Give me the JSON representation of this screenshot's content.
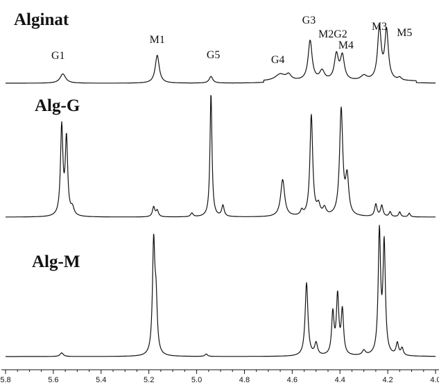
{
  "chart_data": {
    "type": "line",
    "title": "",
    "xlabel": "",
    "ylabel": "",
    "xlim": [
      5.8,
      4.0
    ],
    "x_reversed": true,
    "x_ticks": [
      {
        "value": 5.8,
        "label": "5.8"
      },
      {
        "value": 5.6,
        "label": "5.6"
      },
      {
        "value": 5.4,
        "label": "5.4"
      },
      {
        "value": 5.2,
        "label": "5.2"
      },
      {
        "value": 5.0,
        "label": "5.0"
      },
      {
        "value": 4.8,
        "label": "4.8"
      },
      {
        "value": 4.6,
        "label": "4.6"
      },
      {
        "value": 4.4,
        "label": "4.4"
      },
      {
        "value": 4.2,
        "label": "4.2"
      },
      {
        "value": 4.0,
        "label": "4.0"
      }
    ],
    "grid": false,
    "series": [
      {
        "name": "Alginat",
        "baseline_shift": 0.01,
        "peaks": [
          {
            "x": 5.56,
            "h": 0.14,
            "w": 0.014
          },
          {
            "x": 5.165,
            "h": 0.42,
            "w": 0.01
          },
          {
            "x": 4.94,
            "h": 0.1,
            "w": 0.009
          },
          {
            "x": 4.65,
            "h": 0.1,
            "w": 0.025
          },
          {
            "x": 4.615,
            "h": 0.08,
            "w": 0.012
          },
          {
            "x": 4.525,
            "h": 0.6,
            "w": 0.01
          },
          {
            "x": 4.475,
            "h": 0.14,
            "w": 0.012
          },
          {
            "x": 4.415,
            "h": 0.38,
            "w": 0.01
          },
          {
            "x": 4.39,
            "h": 0.36,
            "w": 0.01
          },
          {
            "x": 4.3,
            "h": 0.07,
            "w": 0.015
          },
          {
            "x": 4.235,
            "h": 0.78,
            "w": 0.009
          },
          {
            "x": 4.205,
            "h": 0.74,
            "w": 0.009
          },
          {
            "x": 4.15,
            "h": 0.04,
            "w": 0.008
          }
        ],
        "labels": [
          {
            "text": "G1",
            "x": 5.58
          },
          {
            "text": "M1",
            "x": 5.165
          },
          {
            "text": "G5",
            "x": 4.93
          },
          {
            "text": "G4",
            "x": 4.66
          },
          {
            "text": "G3",
            "x": 4.53
          },
          {
            "text": "M2G2",
            "x": 4.43
          },
          {
            "text": "M4",
            "x": 4.375
          },
          {
            "text": "M3",
            "x": 4.235
          },
          {
            "text": "M5",
            "x": 4.13
          }
        ]
      },
      {
        "name": "Alg-G",
        "baseline_shift": 0.0,
        "peaks": [
          {
            "x": 5.565,
            "h": 0.72,
            "w": 0.006
          },
          {
            "x": 5.545,
            "h": 0.62,
            "w": 0.006
          },
          {
            "x": 5.52,
            "h": 0.06,
            "w": 0.008
          },
          {
            "x": 5.18,
            "h": 0.08,
            "w": 0.006
          },
          {
            "x": 5.165,
            "h": 0.05,
            "w": 0.006
          },
          {
            "x": 5.02,
            "h": 0.03,
            "w": 0.006
          },
          {
            "x": 4.94,
            "h": 1.0,
            "w": 0.005
          },
          {
            "x": 4.89,
            "h": 0.09,
            "w": 0.006
          },
          {
            "x": 4.64,
            "h": 0.3,
            "w": 0.01
          },
          {
            "x": 4.56,
            "h": 0.04,
            "w": 0.006
          },
          {
            "x": 4.52,
            "h": 0.82,
            "w": 0.007
          },
          {
            "x": 4.49,
            "h": 0.08,
            "w": 0.008
          },
          {
            "x": 4.465,
            "h": 0.06,
            "w": 0.008
          },
          {
            "x": 4.395,
            "h": 0.86,
            "w": 0.008
          },
          {
            "x": 4.37,
            "h": 0.3,
            "w": 0.008
          },
          {
            "x": 4.25,
            "h": 0.1,
            "w": 0.006
          },
          {
            "x": 4.225,
            "h": 0.09,
            "w": 0.006
          },
          {
            "x": 4.19,
            "h": 0.04,
            "w": 0.005
          },
          {
            "x": 4.15,
            "h": 0.04,
            "w": 0.005
          },
          {
            "x": 4.11,
            "h": 0.03,
            "w": 0.005
          }
        ],
        "labels": []
      },
      {
        "name": "Alg-M",
        "baseline_shift": 0.0,
        "peaks": [
          {
            "x": 5.565,
            "h": 0.03,
            "w": 0.008
          },
          {
            "x": 5.18,
            "h": 0.9,
            "w": 0.006
          },
          {
            "x": 5.17,
            "h": 0.4,
            "w": 0.006
          },
          {
            "x": 4.96,
            "h": 0.02,
            "w": 0.006
          },
          {
            "x": 4.54,
            "h": 0.6,
            "w": 0.007
          },
          {
            "x": 4.5,
            "h": 0.1,
            "w": 0.007
          },
          {
            "x": 4.43,
            "h": 0.34,
            "w": 0.006
          },
          {
            "x": 4.41,
            "h": 0.48,
            "w": 0.006
          },
          {
            "x": 4.39,
            "h": 0.36,
            "w": 0.006
          },
          {
            "x": 4.3,
            "h": 0.04,
            "w": 0.008
          },
          {
            "x": 4.235,
            "h": 1.0,
            "w": 0.006
          },
          {
            "x": 4.215,
            "h": 0.9,
            "w": 0.006
          },
          {
            "x": 4.16,
            "h": 0.1,
            "w": 0.006
          },
          {
            "x": 4.14,
            "h": 0.06,
            "w": 0.006
          }
        ],
        "labels": []
      }
    ]
  }
}
